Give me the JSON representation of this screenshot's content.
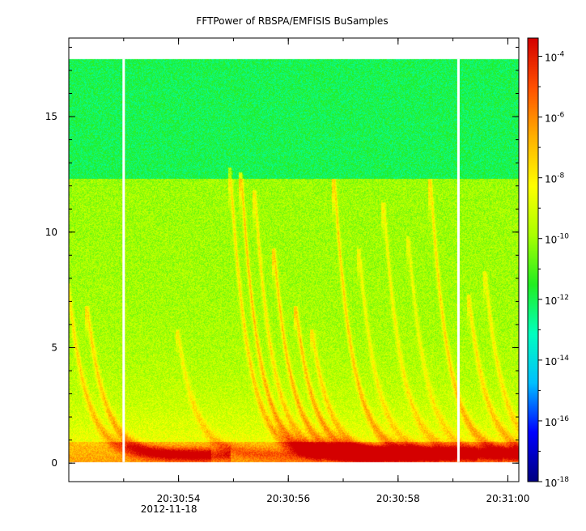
{
  "chart_data": {
    "type": "heatmap",
    "title": "FFTPower of RBSPA/EMFISIS  BuSamples",
    "xlabel": "",
    "ylabel": "",
    "x_axis": {
      "ticks": [
        {
          "label": "20:30:54",
          "sub": "2012-11-18",
          "value_s": 54
        },
        {
          "label": "20:30:56",
          "sub": "",
          "value_s": 56
        },
        {
          "label": "20:30:58",
          "sub": "",
          "value_s": 58
        },
        {
          "label": "20:31:00",
          "sub": "",
          "value_s": 60
        }
      ],
      "range_s": [
        52.0,
        60.2
      ],
      "minor_step_s": 1
    },
    "y_axis": {
      "ticks": [
        0,
        5,
        10,
        15
      ],
      "range": [
        -0.8,
        18.4
      ],
      "minor_step": 1
    },
    "colorbar": {
      "scale": "log",
      "range_exp": [
        -18,
        -3.4
      ],
      "ticks": [
        {
          "base": "10",
          "exp": "-4",
          "value_exp": -4
        },
        {
          "base": "10",
          "exp": "-6",
          "value_exp": -6
        },
        {
          "base": "10",
          "exp": "-8",
          "value_exp": -8
        },
        {
          "base": "10",
          "exp": "-10",
          "value_exp": -10
        },
        {
          "base": "10",
          "exp": "-12",
          "value_exp": -12
        },
        {
          "base": "10",
          "exp": "-14",
          "value_exp": -14
        },
        {
          "base": "10",
          "exp": "-16",
          "value_exp": -16
        },
        {
          "base": "10",
          "exp": "-18",
          "value_exp": -18
        }
      ],
      "colormap": [
        "#00007f",
        "#0000ff",
        "#00bfff",
        "#00ffbf",
        "#22ee22",
        "#aaff00",
        "#ffff00",
        "#ffb000",
        "#ff5000",
        "#d40000"
      ]
    },
    "data_extent": {
      "y_min": 0.05,
      "y_max": 17.5
    },
    "gaps_s": [
      53.0,
      59.1
    ],
    "bands": [
      {
        "y_from": 12.3,
        "y_to": 17.5,
        "level_exp": -12,
        "description": "upper band"
      },
      {
        "y_from": 0.05,
        "y_to": 12.3,
        "level_exp": -10,
        "description": "lower band"
      }
    ],
    "chorus_elements": [
      {
        "t_start": 52.0,
        "f_top": 7.5,
        "intensity": 0.75
      },
      {
        "t_start": 52.35,
        "f_top": 6.5,
        "intensity": 0.8
      },
      {
        "t_start": 54.0,
        "f_top": 5.5,
        "intensity": 0.55
      },
      {
        "t_start": 54.95,
        "f_top": 12.5,
        "intensity": 0.8
      },
      {
        "t_start": 55.15,
        "f_top": 12.3,
        "intensity": 0.95
      },
      {
        "t_start": 55.4,
        "f_top": 11.5,
        "intensity": 0.7
      },
      {
        "t_start": 55.75,
        "f_top": 9.0,
        "intensity": 0.9
      },
      {
        "t_start": 56.15,
        "f_top": 6.5,
        "intensity": 0.9
      },
      {
        "t_start": 56.45,
        "f_top": 5.5,
        "intensity": 0.7
      },
      {
        "t_start": 56.85,
        "f_top": 12.0,
        "intensity": 0.85
      },
      {
        "t_start": 57.3,
        "f_top": 9.0,
        "intensity": 0.55
      },
      {
        "t_start": 57.75,
        "f_top": 11.0,
        "intensity": 0.6
      },
      {
        "t_start": 58.2,
        "f_top": 9.5,
        "intensity": 0.5
      },
      {
        "t_start": 58.6,
        "f_top": 12.0,
        "intensity": 0.8
      },
      {
        "t_start": 59.3,
        "f_top": 7.0,
        "intensity": 0.7
      },
      {
        "t_start": 59.6,
        "f_top": 8.0,
        "intensity": 0.6
      }
    ]
  }
}
